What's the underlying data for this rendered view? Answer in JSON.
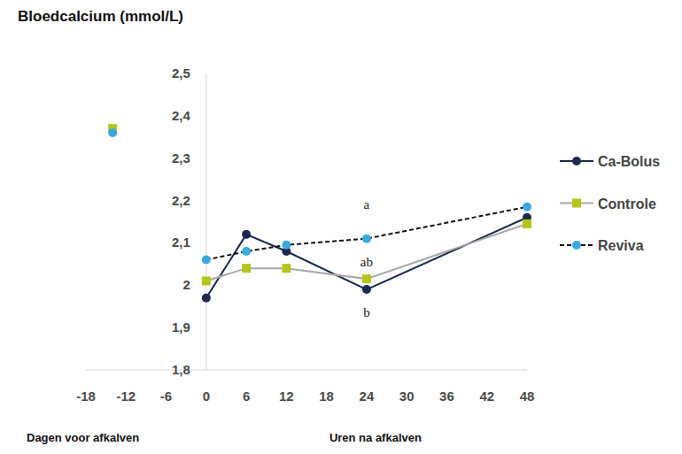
{
  "chart_data": {
    "type": "line",
    "title": "Bloedcalcium (mmol/L)",
    "xlabel_before": "Dagen voor afkalven",
    "xlabel": "Uren na afkalven",
    "x": [
      -14,
      0,
      6,
      12,
      24,
      48
    ],
    "xlim": [
      -18,
      48
    ],
    "xticks": [
      -18,
      -12,
      -6,
      0,
      6,
      12,
      18,
      24,
      30,
      36,
      42,
      48
    ],
    "ylim": [
      1.8,
      2.5
    ],
    "yticks": [
      {
        "value": 1.8,
        "label": "1,8"
      },
      {
        "value": 1.9,
        "label": "1,9"
      },
      {
        "value": 2.0,
        "label": "2"
      },
      {
        "value": 2.1,
        "label": "2,1"
      },
      {
        "value": 2.2,
        "label": "2,2"
      },
      {
        "value": 2.3,
        "label": "2,3"
      },
      {
        "value": 2.4,
        "label": "2,4"
      },
      {
        "value": 2.5,
        "label": "2,5"
      }
    ],
    "grid": false,
    "legend": "right",
    "series": [
      {
        "name": "Ca-Bolus",
        "color": "#1b2a4e",
        "marker": "circle",
        "line_style": "solid",
        "values": [
          null,
          1.97,
          2.12,
          2.08,
          1.99,
          2.16
        ]
      },
      {
        "name": "Controle",
        "color": "#b5c41c",
        "marker": "square",
        "line_style": "solid",
        "values": [
          2.37,
          2.01,
          2.04,
          2.04,
          2.015,
          2.145
        ]
      },
      {
        "name": "Reviva",
        "color": "#3aa9dc",
        "marker": "circle",
        "line_style": "dashed",
        "values": [
          2.36,
          2.06,
          2.08,
          2.095,
          2.11,
          2.185
        ]
      }
    ],
    "annotations": [
      {
        "text": "a",
        "x": 24,
        "y": 2.19
      },
      {
        "text": "ab",
        "x": 24,
        "y": 2.055
      },
      {
        "text": "b",
        "x": 24,
        "y": 1.935
      }
    ]
  }
}
